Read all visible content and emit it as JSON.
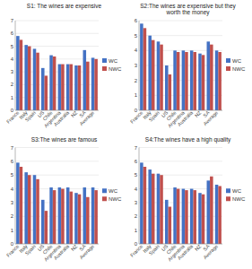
{
  "chart_data": [
    {
      "type": "bar",
      "title": "S1: The wines are expensive",
      "categories": [
        "France",
        "Italy",
        "Spain",
        "US",
        "Chile",
        "Argentina",
        "Australia",
        "NZ",
        "SA",
        "Average"
      ],
      "series": [
        {
          "name": "WC",
          "color": "#4472c4",
          "values": [
            5.8,
            5.1,
            4.8,
            3.3,
            4.3,
            3.6,
            3.6,
            3.5,
            4.7,
            4.1
          ]
        },
        {
          "name": "NWC",
          "color": "#c0504d",
          "values": [
            5.5,
            5.0,
            4.5,
            2.7,
            4.2,
            3.6,
            3.6,
            3.5,
            3.8,
            4.0
          ]
        }
      ],
      "ylim": [
        0,
        7
      ],
      "yticks": [
        0,
        1,
        2,
        3,
        4,
        5,
        6,
        7
      ],
      "grid": true,
      "legend": "right"
    },
    {
      "type": "bar",
      "title": "S2:The wines are expensive but they\nworth the money",
      "categories": [
        "France",
        "Italy",
        "Spain",
        "US",
        "Chile",
        "Argentina",
        "Australia",
        "NZ",
        "SA",
        "Average"
      ],
      "series": [
        {
          "name": "WC",
          "color": "#4472c4",
          "values": [
            5.8,
            5.0,
            4.6,
            3.0,
            4.0,
            4.0,
            4.0,
            3.8,
            4.6,
            4.0
          ]
        },
        {
          "name": "NWC",
          "color": "#c0504d",
          "values": [
            5.5,
            4.7,
            4.4,
            2.4,
            3.9,
            3.9,
            3.9,
            3.7,
            4.4,
            3.9
          ]
        }
      ],
      "ylim": [
        0,
        6
      ],
      "yticks": [
        0,
        1,
        2,
        3,
        4,
        5,
        6
      ],
      "grid": true,
      "legend": "right"
    },
    {
      "type": "bar",
      "title": "S3:The wines are famous",
      "categories": [
        "France",
        "Italy",
        "Spain",
        "US",
        "Chile",
        "Argentina",
        "Australia",
        "NZ",
        "SA",
        "Average"
      ],
      "series": [
        {
          "name": "WC",
          "color": "#4472c4",
          "values": [
            5.9,
            5.2,
            5.0,
            3.2,
            4.1,
            4.1,
            4.1,
            3.7,
            4.1,
            4.1
          ]
        },
        {
          "name": "NWC",
          "color": "#c0504d",
          "values": [
            5.6,
            5.0,
            4.7,
            2.4,
            3.9,
            4.0,
            3.8,
            3.6,
            3.4,
            3.9
          ]
        }
      ],
      "ylim": [
        0,
        7
      ],
      "yticks": [
        0,
        1,
        2,
        3,
        4,
        5,
        6,
        7
      ],
      "grid": true,
      "legend": "right"
    },
    {
      "type": "bar",
      "title": "S4:The wines have a high quality",
      "categories": [
        "France",
        "Italy",
        "Spain",
        "US",
        "Chile",
        "Argentina",
        "Australia",
        "NZ",
        "SA",
        "Average"
      ],
      "series": [
        {
          "name": "WC",
          "color": "#4472c4",
          "values": [
            5.9,
            5.4,
            5.1,
            3.2,
            4.1,
            4.0,
            4.0,
            3.7,
            4.6,
            4.3
          ]
        },
        {
          "name": "NWC",
          "color": "#c0504d",
          "values": [
            5.6,
            5.1,
            5.0,
            2.7,
            4.0,
            3.9,
            3.9,
            3.6,
            4.9,
            4.2
          ]
        }
      ],
      "ylim": [
        0,
        7
      ],
      "yticks": [
        0,
        1,
        2,
        3,
        4,
        5,
        6,
        7
      ],
      "grid": true,
      "legend": "right"
    }
  ]
}
